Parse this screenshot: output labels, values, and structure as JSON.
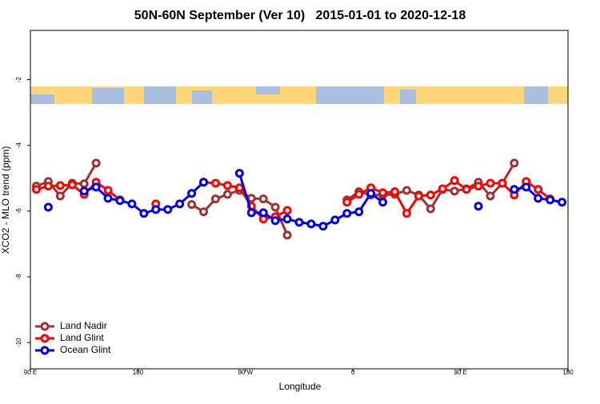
{
  "chart_data": {
    "type": "line",
    "title": "50N-60N September (Ver 10)   2015-01-01 to 2020-12-18",
    "xlabel": "Longitude",
    "ylabel": "XCO2 - MLO trend (ppm)",
    "x": [
      95,
      105,
      115,
      125,
      135,
      145,
      155,
      165,
      175,
      185,
      195,
      205,
      215,
      225,
      235,
      245,
      255,
      265,
      275,
      285,
      295,
      305,
      315,
      325,
      335,
      345,
      355,
      365,
      375,
      385,
      395,
      405,
      415,
      425,
      435,
      445,
      455,
      465,
      475,
      485,
      495,
      505,
      515,
      525,
      535
    ],
    "series": [
      {
        "name": "Land Nadir",
        "color": "#a03232",
        "values": [
          -5.24,
          -5.1,
          -5.54,
          -5.15,
          -5.17,
          -4.54,
          null,
          null,
          null,
          null,
          null,
          null,
          null,
          -5.8,
          -6.02,
          -5.63,
          -5.49,
          -5.37,
          -5.61,
          -5.63,
          -5.88,
          -6.73,
          null,
          null,
          null,
          null,
          -5.66,
          -5.41,
          -5.51,
          -5.51,
          -5.49,
          -5.37,
          -5.51,
          -5.93,
          -5.34,
          -5.39,
          -5.32,
          -5.12,
          -5.54,
          -5.15,
          -4.54,
          null,
          null,
          null,
          null
        ]
      },
      {
        "name": "Land Glint",
        "color": "#ff0000",
        "values": [
          -5.34,
          -5.24,
          -5.22,
          -5.2,
          -5.49,
          -5.12,
          -5.37,
          -5.66,
          null,
          null,
          -5.78,
          null,
          null,
          null,
          -5.12,
          -5.15,
          -5.22,
          -5.29,
          -5.85,
          -6.24,
          -6.17,
          -5.98,
          null,
          null,
          null,
          null,
          -5.73,
          -5.49,
          -5.29,
          -5.44,
          -5.41,
          -6.07,
          -5.54,
          -5.51,
          -5.32,
          -5.07,
          -5.34,
          -5.24,
          -5.15,
          -5.15,
          -5.51,
          -5.1,
          -5.34,
          -5.63,
          null
        ]
      },
      {
        "name": "Ocean Glint",
        "color": "#0000ee",
        "values": [
          null,
          -5.88,
          null,
          null,
          -5.39,
          -5.27,
          -5.61,
          -5.68,
          -5.78,
          -6.07,
          -5.95,
          -5.95,
          -5.78,
          -5.46,
          -5.12,
          null,
          null,
          -4.85,
          -6.05,
          -6.05,
          -6.29,
          -6.24,
          -6.34,
          -6.39,
          -6.46,
          -6.27,
          -6.07,
          -6.02,
          -5.46,
          -5.73,
          null,
          null,
          null,
          null,
          null,
          null,
          null,
          -5.85,
          null,
          null,
          -5.34,
          -5.27,
          -5.61,
          -5.66,
          -5.73
        ]
      }
    ],
    "xlim": [
      90,
      540
    ],
    "xticks": [
      {
        "value": 90,
        "label": "90 E"
      },
      180,
      {
        "value": 270,
        "label": "90 W"
      },
      {
        "value": 360,
        "label": "0"
      },
      {
        "value": 450,
        "label": "90 E"
      },
      {
        "value": 540,
        "label": "180"
      }
    ],
    "ylim": [
      -10.8,
      -0.5
    ],
    "yticks": [
      -2,
      -4,
      -6,
      -8,
      -10
    ],
    "legend": "lower left"
  }
}
